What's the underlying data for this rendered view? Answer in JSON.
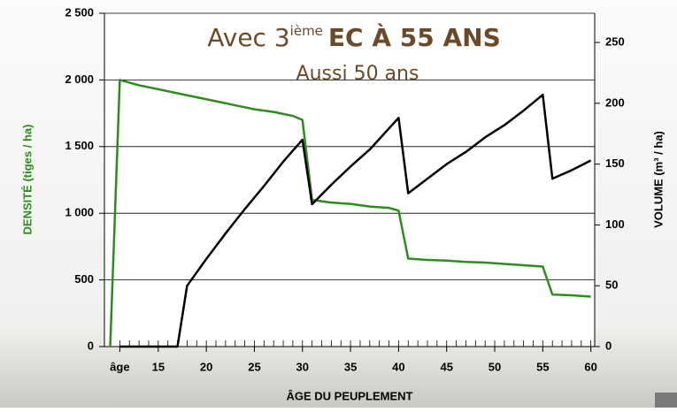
{
  "chart_data": {
    "type": "line",
    "title": [
      "Avec 3",
      "ième",
      "EC À 55 ANS"
    ],
    "subtitle": "Aussi 50 ans",
    "xlabel": "ÂGE DU PEUPLEMENT",
    "ylabel": "DENSITÉ (tiges / ha)",
    "y2label": "VOLUME (m³ / ha)",
    "ylabel_color": "#2e8b1e",
    "xlim": [
      9.4,
      60.4
    ],
    "xticks": [
      {
        "value": 11,
        "label": "âge"
      },
      15,
      20,
      25,
      30,
      35,
      40,
      45,
      50,
      55,
      60
    ],
    "xminorticks": [
      11,
      12,
      13,
      14,
      15,
      16,
      17,
      18,
      19,
      20,
      21,
      22,
      23,
      24,
      25,
      26,
      27,
      28,
      29,
      30,
      31,
      32,
      33,
      34,
      35,
      36,
      37,
      38,
      39,
      40,
      41,
      42,
      43,
      44,
      45,
      46,
      47,
      48,
      49,
      50,
      51,
      52,
      53,
      54,
      55,
      56,
      57,
      58,
      59,
      60
    ],
    "ylim": [
      0,
      2500
    ],
    "yticks": [
      0,
      500,
      {
        "value": 1000,
        "label": "1 000"
      },
      {
        "value": 1500,
        "label": "1 500"
      },
      {
        "value": 2000,
        "label": "2 000"
      },
      {
        "value": 2500,
        "label": "2 500"
      }
    ],
    "y2lim": [
      0,
      274
    ],
    "y2ticks": [
      0,
      50,
      100,
      150,
      200,
      250
    ],
    "grid": true,
    "series": [
      {
        "color": "#2e8b1e",
        "axis": "y",
        "x": [
          10,
          11,
          13,
          15,
          17,
          19,
          21,
          23,
          25,
          27,
          29,
          30,
          31,
          33,
          35,
          37,
          39,
          40,
          41,
          43,
          45,
          47,
          49,
          51,
          53,
          55,
          56,
          58,
          60
        ],
        "values": [
          0,
          2000,
          1960,
          1930,
          1900,
          1870,
          1840,
          1810,
          1780,
          1760,
          1730,
          1700,
          1100,
          1080,
          1070,
          1050,
          1040,
          1020,
          660,
          650,
          645,
          635,
          630,
          620,
          610,
          600,
          390,
          385,
          375
        ]
      },
      {
        "color": "#000000",
        "axis": "y2",
        "x": [
          11,
          17,
          18,
          20,
          22,
          24,
          26,
          28,
          30,
          31,
          33,
          35,
          37,
          40,
          41,
          43,
          45,
          47,
          49,
          51,
          53,
          55,
          56,
          58,
          60
        ],
        "values": [
          0,
          0,
          50,
          72,
          93,
          113,
          132,
          152,
          170,
          117,
          133,
          148,
          162,
          188,
          126,
          138,
          150,
          160,
          172,
          182,
          194,
          207,
          138,
          145,
          153
        ]
      }
    ]
  }
}
